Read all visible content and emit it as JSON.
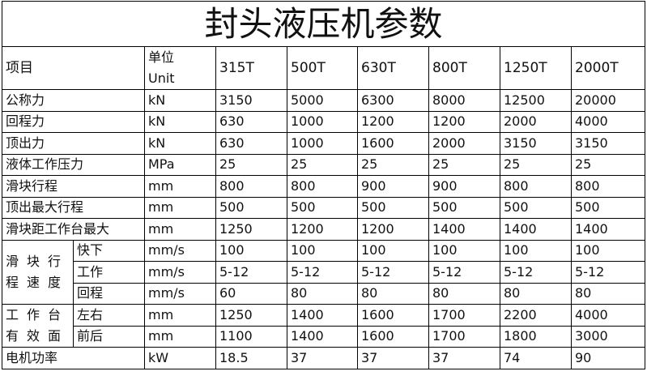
{
  "title": "封头液压机参数",
  "header": {
    "item": "项目",
    "unit_cn": "单位",
    "unit_en": "Unit",
    "models": [
      "315T",
      "500T",
      "630T",
      "800T",
      "1250T",
      "2000T"
    ]
  },
  "rows": [
    {
      "label": "公称力",
      "unit": "kN",
      "values": [
        "3150",
        "5000",
        "6300",
        "8000",
        "12500",
        "20000"
      ]
    },
    {
      "label": "回程力",
      "unit": "kN",
      "values": [
        "630",
        "1000",
        "1200",
        "1200",
        "2000",
        "4000"
      ]
    },
    {
      "label": "顶出力",
      "unit": "kN",
      "values": [
        "630",
        "1000",
        "1600",
        "2000",
        "3150",
        "3150"
      ]
    },
    {
      "label": "液体工作压力",
      "unit": "MPa",
      "values": [
        "25",
        "25",
        "25",
        "25",
        "25",
        "25"
      ]
    },
    {
      "label": "滑块行程",
      "unit": "mm",
      "values": [
        "800",
        "800",
        "900",
        "900",
        "800",
        "800"
      ]
    },
    {
      "label": "顶出最大行程",
      "unit": "mm",
      "values": [
        "500",
        "500",
        "500",
        "500",
        "500",
        "500"
      ]
    },
    {
      "label": "滑块距工作台最大",
      "unit": "mm",
      "values": [
        "1250",
        "1200",
        "1200",
        "1400",
        "1400",
        "1400"
      ]
    }
  ],
  "speed_group": {
    "label": "滑块行程速度",
    "rows": [
      {
        "label": "快下",
        "unit": "mm/s",
        "values": [
          "100",
          "100",
          "100",
          "100",
          "100",
          "100"
        ]
      },
      {
        "label": "工作",
        "unit": "mm/s",
        "values": [
          "5-12",
          "5-12",
          "5-12",
          "5-12",
          "5-12",
          "5-12"
        ]
      },
      {
        "label": "回程",
        "unit": "mm/s",
        "values": [
          "60",
          "80",
          "80",
          "80",
          "80",
          "80"
        ]
      }
    ]
  },
  "table_group": {
    "label": "工作台有效面",
    "rows": [
      {
        "label": "左右",
        "unit": "mm",
        "values": [
          "1250",
          "1400",
          "1600",
          "1700",
          "2200",
          "4000"
        ]
      },
      {
        "label": "前后",
        "unit": "mm",
        "values": [
          "1100",
          "1400",
          "1600",
          "1700",
          "1800",
          "3000"
        ]
      }
    ]
  },
  "motor": {
    "label": "电机功率",
    "unit": "kW",
    "values": [
      "18.5",
      "37",
      "37",
      "37",
      "74",
      "90"
    ]
  }
}
